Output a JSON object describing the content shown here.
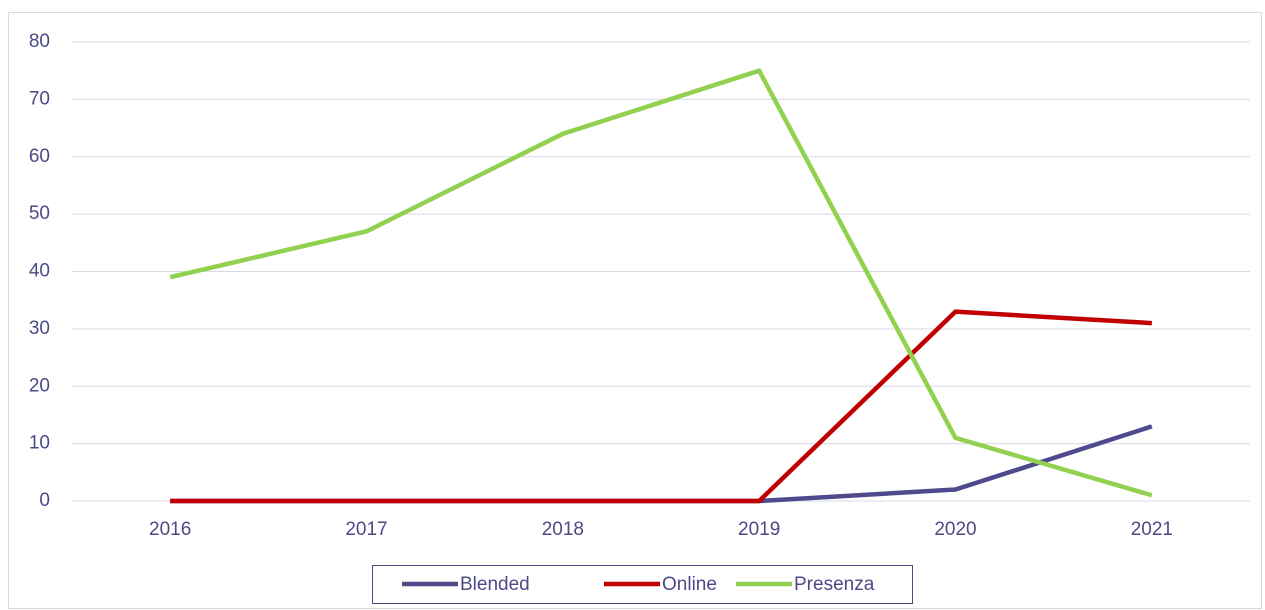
{
  "chart_data": {
    "type": "line",
    "categories": [
      "2016",
      "2017",
      "2018",
      "2019",
      "2020",
      "2021"
    ],
    "series": [
      {
        "name": "Blended",
        "color": "#4f4a8c",
        "values": [
          0,
          0,
          0,
          0,
          2,
          13
        ]
      },
      {
        "name": "Online",
        "color": "#c00000",
        "values": [
          0,
          0,
          0,
          0,
          33,
          31
        ]
      },
      {
        "name": "Presenza",
        "color": "#92d050",
        "values": [
          39,
          47,
          64,
          75,
          11,
          1
        ]
      }
    ],
    "ylim": [
      0,
      80
    ],
    "yticks": [
      0,
      10,
      20,
      30,
      40,
      50,
      60,
      70,
      80
    ],
    "grid": true,
    "legend": "bottom"
  }
}
